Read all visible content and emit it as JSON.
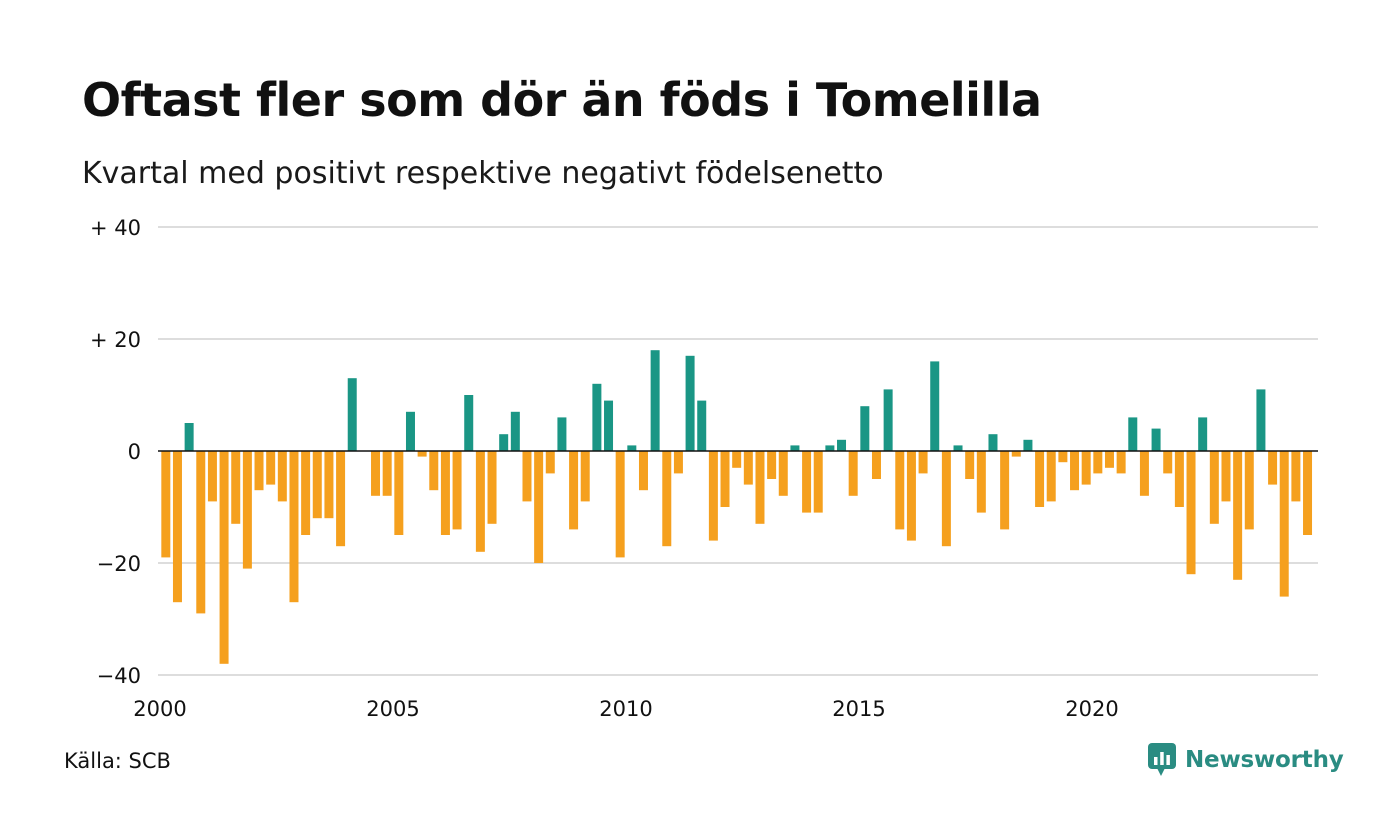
{
  "header": {
    "title": "Oftast fler som dör än föds i Tomelilla",
    "subtitle": "Kvartal med positivt respektive negativt födelsenetto"
  },
  "footer": {
    "source": "Källa: SCB",
    "brand": "Newsworthy",
    "brand_icon": "bar-chart-speech-bubble-icon"
  },
  "colors": {
    "positive": "#1a9685",
    "negative": "#f5a01e",
    "grid": "#dddddd",
    "zero_line": "#111111",
    "brand": "#2a8c82"
  },
  "chart_data": {
    "type": "bar",
    "title": "Oftast fler som dör än föds i Tomelilla",
    "subtitle": "Kvartal med positivt respektive negativt födelsenetto",
    "xlabel": "",
    "ylabel": "",
    "ylim": [
      -40,
      40
    ],
    "yticks": [
      {
        "value": 40,
        "label": "+ 40"
      },
      {
        "value": 20,
        "label": "+ 20"
      },
      {
        "value": 0,
        "label": "0"
      },
      {
        "value": -20,
        "label": "−20"
      },
      {
        "value": -40,
        "label": "−40"
      }
    ],
    "xticks": [
      "2000",
      "2005",
      "2010",
      "2015",
      "2020"
    ],
    "grid": true,
    "legend": "none",
    "start_year": 2000,
    "values": [
      -19,
      -27,
      5,
      -29,
      -9,
      -38,
      -13,
      -21,
      -7,
      -6,
      -9,
      -27,
      -15,
      -12,
      -12,
      -17,
      13,
      0,
      -8,
      -8,
      -15,
      7,
      -1,
      -7,
      -15,
      -14,
      10,
      -18,
      -13,
      3,
      7,
      -9,
      -20,
      -4,
      6,
      -14,
      -9,
      12,
      9,
      -19,
      1,
      -7,
      18,
      -17,
      -4,
      17,
      9,
      -16,
      -10,
      -3,
      -6,
      -13,
      -5,
      -8,
      1,
      -11,
      -11,
      1,
      2,
      -8,
      8,
      -5,
      11,
      -14,
      -16,
      -4,
      16,
      -17,
      1,
      -5,
      -11,
      3,
      -14,
      -1,
      2,
      -10,
      -9,
      -2,
      -7,
      -6,
      -4,
      -3,
      -4,
      6,
      -8,
      4,
      -4,
      -10,
      -22,
      6,
      -13,
      -9,
      -23,
      -14,
      11,
      -6,
      -26,
      -9,
      -15
    ]
  }
}
